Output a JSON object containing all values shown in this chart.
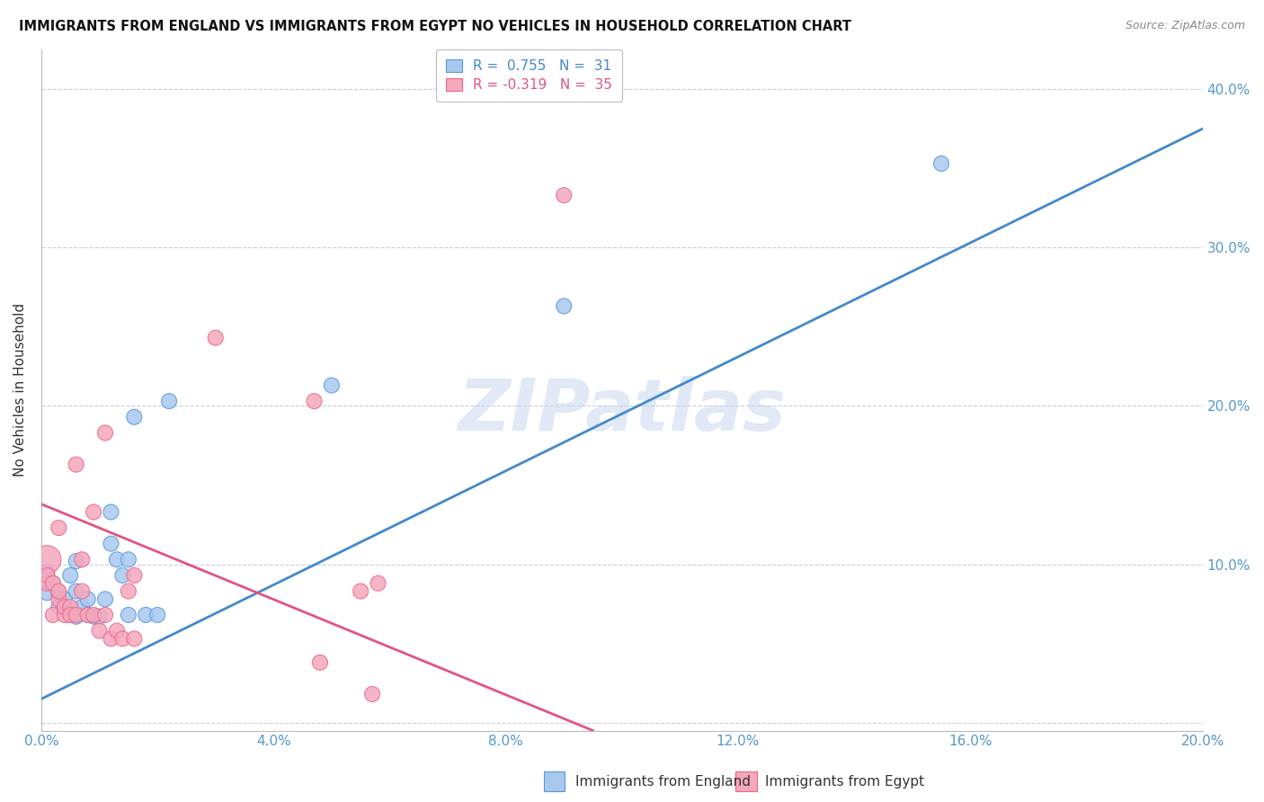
{
  "title": "IMMIGRANTS FROM ENGLAND VS IMMIGRANTS FROM EGYPT NO VEHICLES IN HOUSEHOLD CORRELATION CHART",
  "source": "Source: ZipAtlas.com",
  "ylabel": "No Vehicles in Household",
  "xlim": [
    0.0,
    0.2
  ],
  "ylim": [
    -0.005,
    0.425
  ],
  "legend_england": "R =  0.755   N =  31",
  "legend_egypt": "R = -0.319   N =  35",
  "england_color": "#A8C8EE",
  "egypt_color": "#F4A8BC",
  "england_edge_color": "#5599DD",
  "egypt_edge_color": "#EE6688",
  "england_line_color": "#4488CC",
  "egypt_line_color": "#E05580",
  "watermark": "ZIPatlas",
  "background_color": "#FFFFFF",
  "england_points_x": [
    0.001,
    0.001,
    0.002,
    0.003,
    0.003,
    0.004,
    0.004,
    0.005,
    0.005,
    0.006,
    0.006,
    0.006,
    0.007,
    0.008,
    0.008,
    0.009,
    0.01,
    0.011,
    0.012,
    0.012,
    0.013,
    0.014,
    0.015,
    0.015,
    0.016,
    0.018,
    0.02,
    0.022,
    0.05,
    0.09,
    0.155
  ],
  "england_points_y": [
    0.095,
    0.082,
    0.088,
    0.073,
    0.082,
    0.078,
    0.072,
    0.068,
    0.093,
    0.102,
    0.067,
    0.083,
    0.073,
    0.068,
    0.078,
    0.067,
    0.067,
    0.078,
    0.113,
    0.133,
    0.103,
    0.093,
    0.068,
    0.103,
    0.193,
    0.068,
    0.068,
    0.203,
    0.213,
    0.263,
    0.353
  ],
  "england_sizes": [
    150,
    150,
    150,
    150,
    150,
    150,
    150,
    150,
    150,
    150,
    150,
    150,
    150,
    150,
    150,
    150,
    150,
    150,
    150,
    150,
    150,
    150,
    150,
    150,
    150,
    150,
    150,
    150,
    150,
    150,
    150
  ],
  "egypt_points_x": [
    0.001,
    0.001,
    0.001,
    0.002,
    0.002,
    0.003,
    0.003,
    0.003,
    0.004,
    0.004,
    0.005,
    0.005,
    0.006,
    0.006,
    0.007,
    0.007,
    0.008,
    0.009,
    0.009,
    0.01,
    0.011,
    0.011,
    0.012,
    0.013,
    0.014,
    0.015,
    0.016,
    0.016,
    0.03,
    0.047,
    0.048,
    0.055,
    0.057,
    0.058,
    0.09
  ],
  "egypt_points_y": [
    0.103,
    0.088,
    0.093,
    0.088,
    0.068,
    0.078,
    0.083,
    0.123,
    0.068,
    0.073,
    0.073,
    0.068,
    0.068,
    0.163,
    0.083,
    0.103,
    0.068,
    0.068,
    0.133,
    0.058,
    0.183,
    0.068,
    0.053,
    0.058,
    0.053,
    0.083,
    0.093,
    0.053,
    0.243,
    0.203,
    0.038,
    0.083,
    0.018,
    0.088,
    0.333
  ],
  "egypt_sizes": [
    500,
    150,
    150,
    150,
    150,
    150,
    150,
    150,
    150,
    150,
    150,
    150,
    150,
    150,
    150,
    150,
    150,
    150,
    150,
    150,
    150,
    150,
    150,
    150,
    150,
    150,
    150,
    150,
    150,
    150,
    150,
    150,
    150,
    150,
    150
  ],
  "england_line_x": [
    0.0,
    0.2
  ],
  "england_line_y": [
    0.015,
    0.375
  ],
  "egypt_line_x": [
    0.0,
    0.095
  ],
  "egypt_line_y": [
    0.138,
    -0.005
  ]
}
